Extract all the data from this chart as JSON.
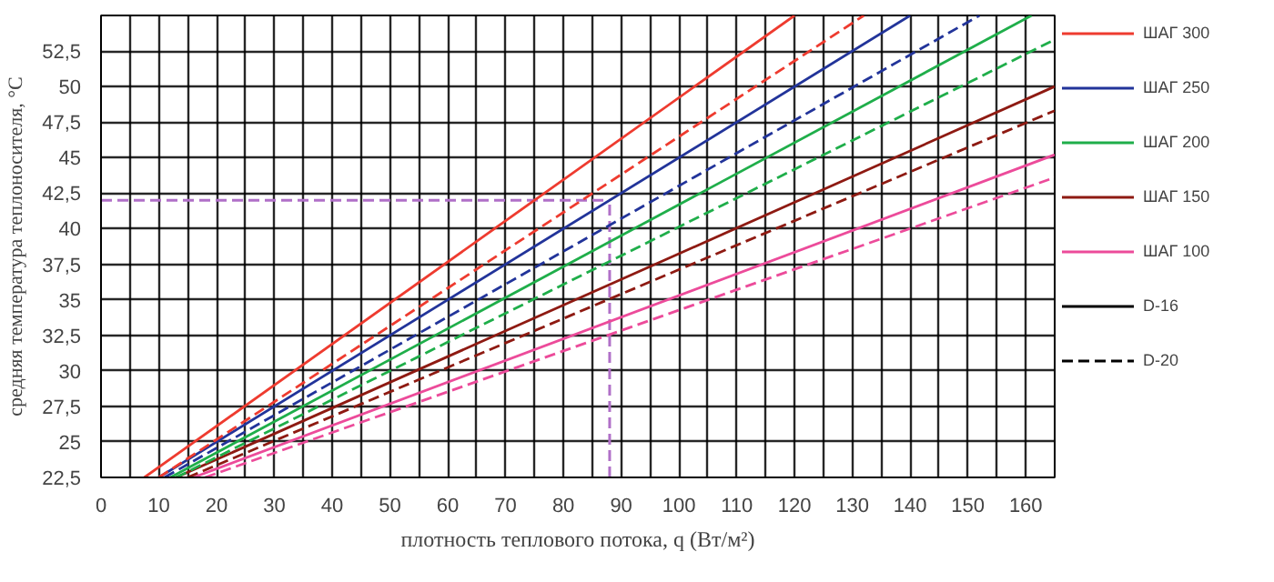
{
  "chart_data": {
    "type": "line",
    "xlabel": "плотность теплового потока, q (Вт/м²)",
    "ylabel": "средняя температура теплоносителя, °C",
    "xlim": [
      0,
      165
    ],
    "ylim": [
      22.5,
      55
    ],
    "xticks": [
      0,
      {
        "value": 5,
        "label": null
      },
      10,
      {
        "value": 15,
        "label": null
      },
      20,
      {
        "value": 25,
        "label": null
      },
      30,
      {
        "value": 35,
        "label": null
      },
      40,
      {
        "value": 45,
        "label": null
      },
      50,
      {
        "value": 55,
        "label": null
      },
      60,
      {
        "value": 65,
        "label": null
      },
      70,
      {
        "value": 75,
        "label": null
      },
      80,
      {
        "value": 85,
        "label": null
      },
      90,
      {
        "value": 95,
        "label": null
      },
      100,
      {
        "value": 105,
        "label": null
      },
      110,
      {
        "value": 115,
        "label": null
      },
      120,
      {
        "value": 125,
        "label": null
      },
      130,
      {
        "value": 135,
        "label": null
      },
      140,
      {
        "value": 145,
        "label": null
      },
      150,
      {
        "value": 155,
        "label": null
      },
      160
    ],
    "yticks": [
      {
        "value": 22.5,
        "label": "22,5"
      },
      25,
      {
        "value": 27.5,
        "label": "27,5"
      },
      30,
      {
        "value": 32.5,
        "label": "32,5"
      },
      35,
      {
        "value": 37.5,
        "label": "37,5"
      },
      40,
      {
        "value": 42.5,
        "label": "42,5"
      },
      45,
      {
        "value": 47.5,
        "label": "47,5"
      },
      50,
      {
        "value": 52.5,
        "label": "52,5"
      }
    ],
    "grid": true,
    "legend": "right",
    "marker": "none",
    "series": [
      {
        "name": "ШАГ 300",
        "color": "#ee3b2f",
        "line_style": "solid",
        "x": [
          7.5,
          120
        ],
        "values": [
          22.5,
          55
        ]
      },
      {
        "name": "ШАГ 250",
        "color": "#22349a",
        "line_style": "solid",
        "x": [
          10,
          140
        ],
        "values": [
          22.5,
          55
        ]
      },
      {
        "name": "ШАГ 200",
        "color": "#1fae4a",
        "line_style": "solid",
        "x": [
          12,
          161
        ],
        "values": [
          22.5,
          55
        ]
      },
      {
        "name": "ШАГ 150",
        "color": "#8e1a12",
        "line_style": "solid",
        "x": [
          13,
          165
        ],
        "values": [
          22.5,
          50
        ]
      },
      {
        "name": "ШАГ 100",
        "color": "#ec4b9a",
        "line_style": "solid",
        "x": [
          16,
          165
        ],
        "values": [
          22.5,
          45.2
        ]
      },
      {
        "name": "D-16",
        "color": "#000000",
        "line_style": "solid"
      },
      {
        "name": "D-20",
        "color": "#000000",
        "line_style": "dashed"
      },
      {
        "color": "#ee3b2f",
        "line_style": "dashed",
        "x": [
          10,
          132
        ],
        "values": [
          22.5,
          55
        ]
      },
      {
        "color": "#22349a",
        "line_style": "dashed",
        "x": [
          11,
          152
        ],
        "values": [
          22.5,
          55
        ]
      },
      {
        "color": "#1fae4a",
        "line_style": "dashed",
        "x": [
          13,
          165
        ],
        "values": [
          22.5,
          53.3
        ]
      },
      {
        "color": "#8e1a12",
        "line_style": "dashed",
        "x": [
          15,
          165
        ],
        "values": [
          22.5,
          48.3
        ]
      },
      {
        "color": "#ec4b9a",
        "line_style": "dashed",
        "x": [
          18,
          165
        ],
        "values": [
          22.5,
          43.6
        ]
      }
    ],
    "ref_lines": [
      {
        "axis": "y",
        "value": 42,
        "color": "#b070c8",
        "line_style": "dashed"
      },
      {
        "axis": "x",
        "value": 88,
        "color": "#b070c8",
        "line_style": "dashed"
      }
    ]
  }
}
